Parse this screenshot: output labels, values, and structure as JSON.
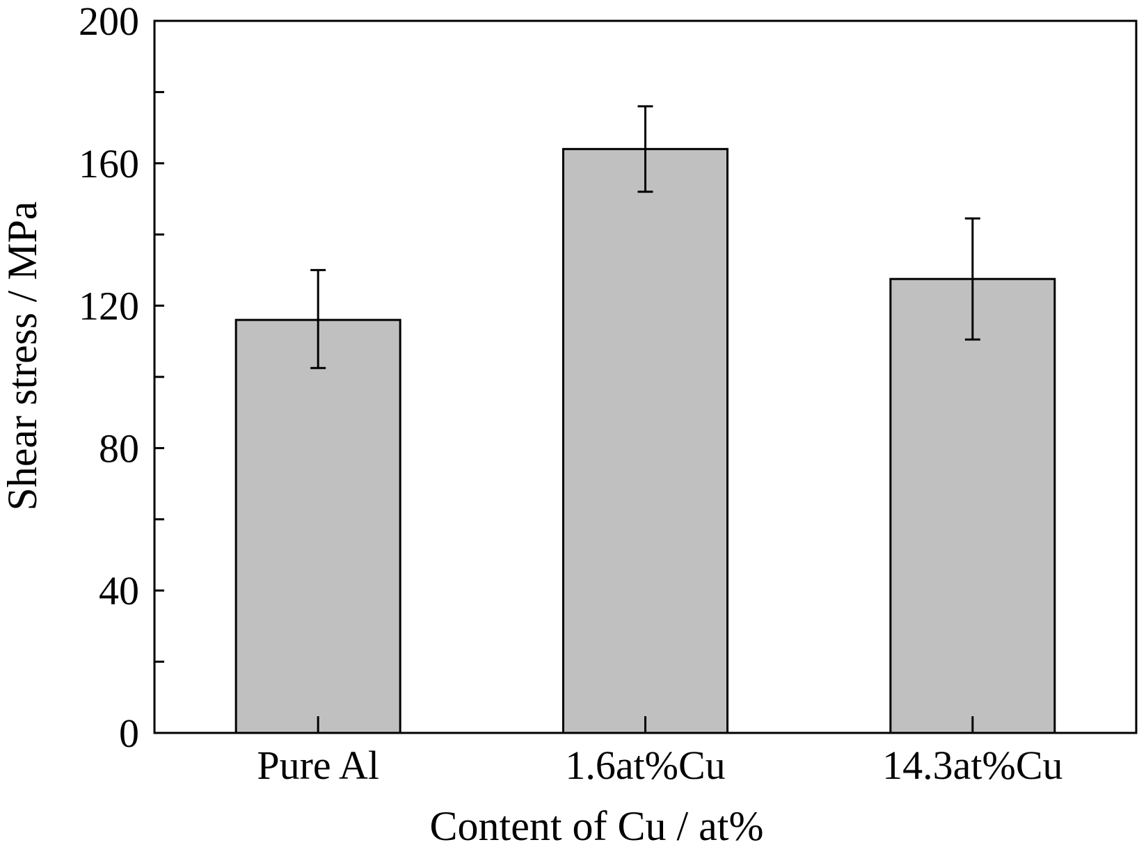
{
  "chart_data": {
    "type": "bar",
    "title": "",
    "xlabel": "Content of Cu / at%",
    "ylabel": "Shear stress / MPa",
    "categories": [
      "Pure Al",
      "1.6at%Cu",
      "14.3at%Cu"
    ],
    "series": [
      {
        "values": [
          116,
          164,
          127.5
        ],
        "error_low": [
          102.5,
          152,
          110.5
        ],
        "error_high": [
          130,
          176,
          144.5
        ]
      }
    ],
    "ylim": [
      0,
      200
    ],
    "yticks": [
      0,
      40,
      80,
      120,
      160,
      200
    ],
    "yticks_minor": [
      20,
      60,
      100,
      140,
      180
    ],
    "grid": false,
    "legend": "none",
    "colors": {
      "bar_fill": "#c0c0c0",
      "bar_stroke": "#000000",
      "axis": "#000000"
    }
  }
}
